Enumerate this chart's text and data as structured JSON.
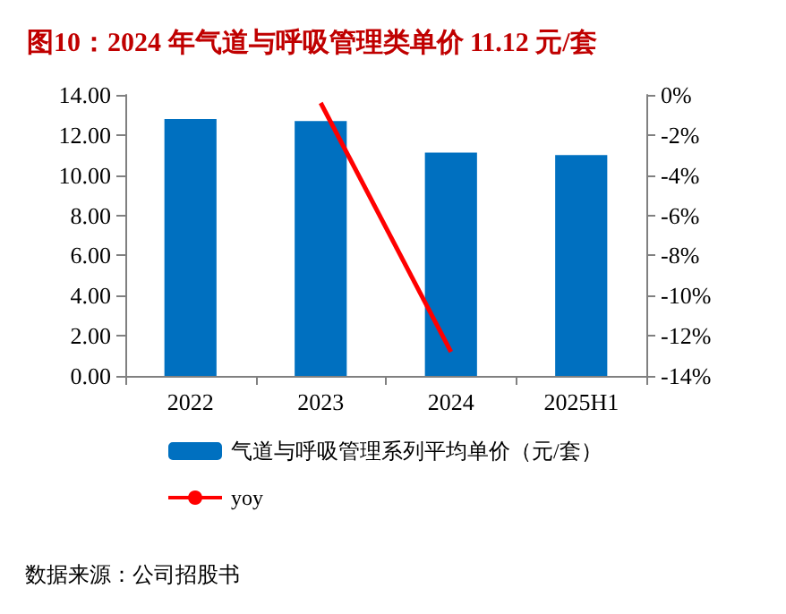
{
  "chart_data": {
    "type": "bar",
    "title": "图10：2024 年气道与呼吸管理类单价 11.12 元/套",
    "categories": [
      "2022",
      "2023",
      "2024",
      "2025H1"
    ],
    "series": [
      {
        "name": "气道与呼吸管理系列平均单价（元/套）",
        "color": "#0070c0",
        "values": [
          12.8,
          12.7,
          11.12,
          11.0
        ]
      },
      {
        "name": "yoy",
        "type": "line",
        "axis": "y2",
        "color": "#ff0000",
        "values": [
          null,
          -0.4,
          -12.8,
          null
        ]
      }
    ],
    "ylim": [
      0,
      14
    ],
    "yticks": [
      {
        "value": 0,
        "label": "0.00"
      },
      {
        "value": 2,
        "label": "2.00"
      },
      {
        "value": 4,
        "label": "4.00"
      },
      {
        "value": 6,
        "label": "6.00"
      },
      {
        "value": 8,
        "label": "8.00"
      },
      {
        "value": 10,
        "label": "10.00"
      },
      {
        "value": 12,
        "label": "12.00"
      },
      {
        "value": 14,
        "label": "14.00"
      }
    ],
    "y2lim": [
      -14,
      0
    ],
    "y2ticks": [
      {
        "value": -14,
        "label": "-14%"
      },
      {
        "value": -12,
        "label": "-12%"
      },
      {
        "value": -10,
        "label": "-10%"
      },
      {
        "value": -8,
        "label": "-8%"
      },
      {
        "value": -6,
        "label": "-6%"
      },
      {
        "value": -4,
        "label": "-4%"
      },
      {
        "value": -2,
        "label": "-2%"
      },
      {
        "value": 0,
        "label": "0%"
      }
    ],
    "legend": "bottom",
    "grid": false,
    "marker": "none",
    "annotations": [
      "数据来源：公司招股书"
    ]
  }
}
